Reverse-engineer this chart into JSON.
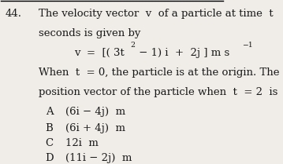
{
  "question_number": "44.",
  "line1": "The velocity vector  v  of a particle at time  t",
  "line2": "seconds is given by",
  "line3a": "v  =  [( 3t",
  "line3b": "2",
  "line3c": " − 1) i  +  2j ] m s",
  "line3d": "−1",
  "line4": "When  t  = 0, the particle is at the origin. The",
  "line5": "position vector of the particle when  t  = 2  is",
  "options": [
    [
      "A",
      "(6i − 4j)  m"
    ],
    [
      "B",
      "(6i + 4j)  m"
    ],
    [
      "C",
      "12i  m"
    ],
    [
      "D",
      "(11i − 2j)  m"
    ]
  ],
  "bg_color": "#f0ede8",
  "text_color": "#1a1a1a",
  "font_size": 9.5
}
